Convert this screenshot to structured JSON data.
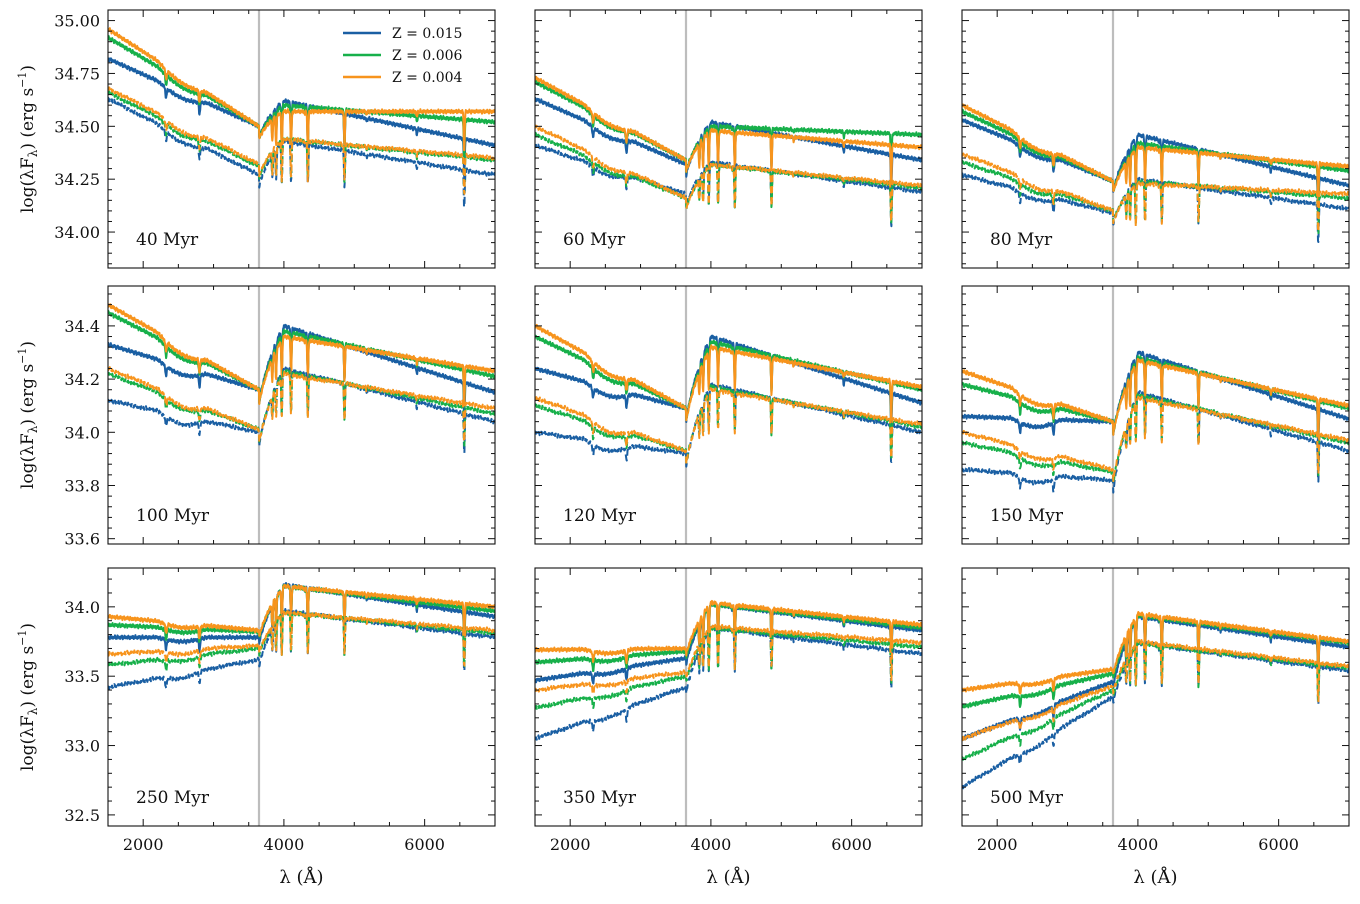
{
  "figure": {
    "xlabel": "λ (Å)",
    "ylabel": "log(λF",
    "ylabel_sub": "λ",
    "ylabel_units": ") (erg s",
    "ylabel_sup": "−1",
    "ylabel_close": ")",
    "legend": [
      {
        "label": "Z = 0.015",
        "color": "#1a5fa3"
      },
      {
        "label": "Z = 0.006",
        "color": "#17b04a"
      },
      {
        "label": "Z = 0.004",
        "color": "#f7941d"
      }
    ],
    "balmer_marker_angstrom": 3646,
    "balmer_marker_color": "#bdbdbd"
  },
  "chart_data": [
    {
      "type": "line",
      "panel": "40 Myr",
      "xlim": [
        1500,
        7000
      ],
      "ylim": [
        33.83,
        35.05
      ],
      "yticks": [
        "34.00",
        "34.25",
        "34.50",
        "34.75",
        "35.00"
      ],
      "xticks": [],
      "series": [
        {
          "name": "Z = 0.015",
          "style": "solid",
          "start": 34.82,
          "balmer": 34.5,
          "peak": 34.62,
          "end": 34.41
        },
        {
          "name": "Z = 0.006",
          "style": "solid",
          "start": 34.92,
          "balmer": 34.5,
          "peak": 34.6,
          "end": 34.52
        },
        {
          "name": "Z = 0.004",
          "style": "solid",
          "start": 34.96,
          "balmer": 34.5,
          "peak": 34.57,
          "end": 34.57
        },
        {
          "name": "Z = 0.015",
          "style": "dashed",
          "start": 34.63,
          "balmer": 34.27,
          "peak": 34.43,
          "end": 34.27
        },
        {
          "name": "Z = 0.006",
          "style": "dashed",
          "start": 34.66,
          "balmer": 34.31,
          "peak": 34.44,
          "end": 34.34
        },
        {
          "name": "Z = 0.004",
          "style": "dashed",
          "start": 34.68,
          "balmer": 34.32,
          "peak": 34.44,
          "end": 34.35
        }
      ]
    },
    {
      "type": "line",
      "panel": "60 Myr",
      "xlim": [
        1500,
        7000
      ],
      "ylim": [
        33.83,
        35.05
      ],
      "yticks": [],
      "xticks": [],
      "series": [
        {
          "name": "Z = 0.015",
          "style": "solid",
          "start": 34.63,
          "balmer": 34.32,
          "peak": 34.52,
          "end": 34.34
        },
        {
          "name": "Z = 0.006",
          "style": "solid",
          "start": 34.71,
          "balmer": 34.34,
          "peak": 34.5,
          "end": 34.46
        },
        {
          "name": "Z = 0.004",
          "style": "solid",
          "start": 34.73,
          "balmer": 34.34,
          "peak": 34.48,
          "end": 34.4
        },
        {
          "name": "Z = 0.015",
          "style": "dashed",
          "start": 34.41,
          "balmer": 34.18,
          "peak": 34.33,
          "end": 34.19
        },
        {
          "name": "Z = 0.006",
          "style": "dashed",
          "start": 34.46,
          "balmer": 34.16,
          "peak": 34.32,
          "end": 34.21
        },
        {
          "name": "Z = 0.004",
          "style": "dashed",
          "start": 34.5,
          "balmer": 34.16,
          "peak": 34.32,
          "end": 34.22
        }
      ]
    },
    {
      "type": "line",
      "panel": "80 Myr",
      "xlim": [
        1500,
        7000
      ],
      "ylim": [
        33.83,
        35.05
      ],
      "yticks": [],
      "xticks": [],
      "series": [
        {
          "name": "Z = 0.015",
          "style": "solid",
          "start": 34.53,
          "balmer": 34.24,
          "peak": 34.46,
          "end": 34.22
        },
        {
          "name": "Z = 0.006",
          "style": "solid",
          "start": 34.57,
          "balmer": 34.24,
          "peak": 34.42,
          "end": 34.29
        },
        {
          "name": "Z = 0.004",
          "style": "solid",
          "start": 34.6,
          "balmer": 34.24,
          "peak": 34.4,
          "end": 34.31
        },
        {
          "name": "Z = 0.015",
          "style": "dashed",
          "start": 34.27,
          "balmer": 34.09,
          "peak": 34.25,
          "end": 34.11
        },
        {
          "name": "Z = 0.006",
          "style": "dashed",
          "start": 34.33,
          "balmer": 34.1,
          "peak": 34.24,
          "end": 34.16
        },
        {
          "name": "Z = 0.004",
          "style": "dashed",
          "start": 34.37,
          "balmer": 34.1,
          "peak": 34.23,
          "end": 34.18
        }
      ]
    },
    {
      "type": "line",
      "panel": "100 Myr",
      "xlim": [
        1500,
        7000
      ],
      "ylim": [
        33.58,
        34.55
      ],
      "yticks": [
        "33.6",
        "33.8",
        "34.0",
        "34.2",
        "34.4"
      ],
      "xticks": [],
      "series": [
        {
          "name": "Z = 0.015",
          "style": "solid",
          "start": 34.33,
          "balmer": 34.16,
          "peak": 34.4,
          "end": 34.15
        },
        {
          "name": "Z = 0.006",
          "style": "solid",
          "start": 34.45,
          "balmer": 34.16,
          "peak": 34.38,
          "end": 34.21
        },
        {
          "name": "Z = 0.004",
          "style": "solid",
          "start": 34.48,
          "balmer": 34.16,
          "peak": 34.36,
          "end": 34.23
        },
        {
          "name": "Z = 0.015",
          "style": "dashed",
          "start": 34.12,
          "balmer": 34.0,
          "peak": 34.24,
          "end": 34.04
        },
        {
          "name": "Z = 0.006",
          "style": "dashed",
          "start": 34.22,
          "balmer": 34.01,
          "peak": 34.23,
          "end": 34.07
        },
        {
          "name": "Z = 0.004",
          "style": "dashed",
          "start": 34.24,
          "balmer": 34.01,
          "peak": 34.22,
          "end": 34.09
        }
      ]
    },
    {
      "type": "line",
      "panel": "120 Myr",
      "xlim": [
        1500,
        7000
      ],
      "ylim": [
        33.58,
        34.55
      ],
      "yticks": [],
      "xticks": [],
      "series": [
        {
          "name": "Z = 0.015",
          "style": "solid",
          "start": 34.24,
          "balmer": 34.09,
          "peak": 34.36,
          "end": 34.11
        },
        {
          "name": "Z = 0.006",
          "style": "solid",
          "start": 34.36,
          "balmer": 34.09,
          "peak": 34.34,
          "end": 34.16
        },
        {
          "name": "Z = 0.004",
          "style": "solid",
          "start": 34.4,
          "balmer": 34.09,
          "peak": 34.32,
          "end": 34.17
        },
        {
          "name": "Z = 0.015",
          "style": "dashed",
          "start": 34.0,
          "balmer": 33.92,
          "peak": 34.18,
          "end": 34.0
        },
        {
          "name": "Z = 0.006",
          "style": "dashed",
          "start": 34.1,
          "balmer": 33.93,
          "peak": 34.17,
          "end": 34.02
        },
        {
          "name": "Z = 0.004",
          "style": "dashed",
          "start": 34.13,
          "balmer": 33.93,
          "peak": 34.16,
          "end": 34.03
        }
      ]
    },
    {
      "type": "line",
      "panel": "150 Myr",
      "xlim": [
        1500,
        7000
      ],
      "ylim": [
        33.58,
        34.55
      ],
      "yticks": [],
      "xticks": [],
      "series": [
        {
          "name": "Z = 0.015",
          "style": "solid",
          "start": 34.06,
          "balmer": 34.04,
          "peak": 34.3,
          "end": 34.05
        },
        {
          "name": "Z = 0.006",
          "style": "solid",
          "start": 34.18,
          "balmer": 34.04,
          "peak": 34.28,
          "end": 34.09
        },
        {
          "name": "Z = 0.004",
          "style": "solid",
          "start": 34.23,
          "balmer": 34.04,
          "peak": 34.27,
          "end": 34.1
        },
        {
          "name": "Z = 0.015",
          "style": "dashed",
          "start": 33.86,
          "balmer": 33.82,
          "peak": 34.15,
          "end": 33.93
        },
        {
          "name": "Z = 0.006",
          "style": "dashed",
          "start": 33.96,
          "balmer": 33.85,
          "peak": 34.14,
          "end": 33.96
        },
        {
          "name": "Z = 0.004",
          "style": "dashed",
          "start": 34.0,
          "balmer": 33.86,
          "peak": 34.13,
          "end": 33.97
        }
      ]
    },
    {
      "type": "line",
      "panel": "250 Myr",
      "xlim": [
        1500,
        7000
      ],
      "ylim": [
        32.42,
        34.28
      ],
      "yticks": [
        "32.5",
        "33.0",
        "33.5",
        "34.0"
      ],
      "xticks": [
        "2000",
        "4000",
        "6000"
      ],
      "series": [
        {
          "name": "Z = 0.015",
          "style": "solid",
          "start": 33.78,
          "balmer": 33.78,
          "peak": 34.16,
          "end": 33.93
        },
        {
          "name": "Z = 0.006",
          "style": "solid",
          "start": 33.87,
          "balmer": 33.82,
          "peak": 34.15,
          "end": 33.97
        },
        {
          "name": "Z = 0.004",
          "style": "solid",
          "start": 33.93,
          "balmer": 33.83,
          "peak": 34.15,
          "end": 34.0
        },
        {
          "name": "Z = 0.015",
          "style": "dashed",
          "start": 33.42,
          "balmer": 33.62,
          "peak": 33.97,
          "end": 33.78
        },
        {
          "name": "Z = 0.006",
          "style": "dashed",
          "start": 33.58,
          "balmer": 33.7,
          "peak": 33.96,
          "end": 33.81
        },
        {
          "name": "Z = 0.004",
          "style": "dashed",
          "start": 33.66,
          "balmer": 33.72,
          "peak": 33.96,
          "end": 33.83
        }
      ]
    },
    {
      "type": "line",
      "panel": "350 Myr",
      "xlim": [
        1500,
        7000
      ],
      "ylim": [
        32.42,
        34.28
      ],
      "yticks": [],
      "xticks": [
        "2000",
        "4000",
        "6000"
      ],
      "series": [
        {
          "name": "Z = 0.015",
          "style": "solid",
          "start": 33.47,
          "balmer": 33.63,
          "peak": 34.02,
          "end": 33.83
        },
        {
          "name": "Z = 0.006",
          "style": "solid",
          "start": 33.6,
          "balmer": 33.68,
          "peak": 34.02,
          "end": 33.85
        },
        {
          "name": "Z = 0.004",
          "style": "solid",
          "start": 33.69,
          "balmer": 33.7,
          "peak": 34.03,
          "end": 33.87
        },
        {
          "name": "Z = 0.015",
          "style": "dashed",
          "start": 33.05,
          "balmer": 33.42,
          "peak": 33.85,
          "end": 33.66
        },
        {
          "name": "Z = 0.006",
          "style": "dashed",
          "start": 33.27,
          "balmer": 33.5,
          "peak": 33.85,
          "end": 33.71
        },
        {
          "name": "Z = 0.004",
          "style": "dashed",
          "start": 33.4,
          "balmer": 33.53,
          "peak": 33.86,
          "end": 33.74
        }
      ]
    },
    {
      "type": "line",
      "panel": "500 Myr",
      "xlim": [
        1500,
        7000
      ],
      "ylim": [
        32.42,
        34.28
      ],
      "yticks": [],
      "xticks": [
        "2000",
        "4000",
        "6000"
      ],
      "series": [
        {
          "name": "Z = 0.015",
          "style": "solid",
          "start": 33.05,
          "balmer": 33.46,
          "peak": 33.93,
          "end": 33.71
        },
        {
          "name": "Z = 0.006",
          "style": "solid",
          "start": 33.28,
          "balmer": 33.52,
          "peak": 33.94,
          "end": 33.74
        },
        {
          "name": "Z = 0.004",
          "style": "solid",
          "start": 33.4,
          "balmer": 33.55,
          "peak": 33.95,
          "end": 33.75
        },
        {
          "name": "Z = 0.015",
          "style": "dashed",
          "start": 32.7,
          "balmer": 33.35,
          "peak": 33.74,
          "end": 33.54
        },
        {
          "name": "Z = 0.006",
          "style": "dashed",
          "start": 32.9,
          "balmer": 33.4,
          "peak": 33.74,
          "end": 33.56
        },
        {
          "name": "Z = 0.004",
          "style": "dashed",
          "start": 33.05,
          "balmer": 33.43,
          "peak": 33.75,
          "end": 33.57
        }
      ]
    }
  ]
}
